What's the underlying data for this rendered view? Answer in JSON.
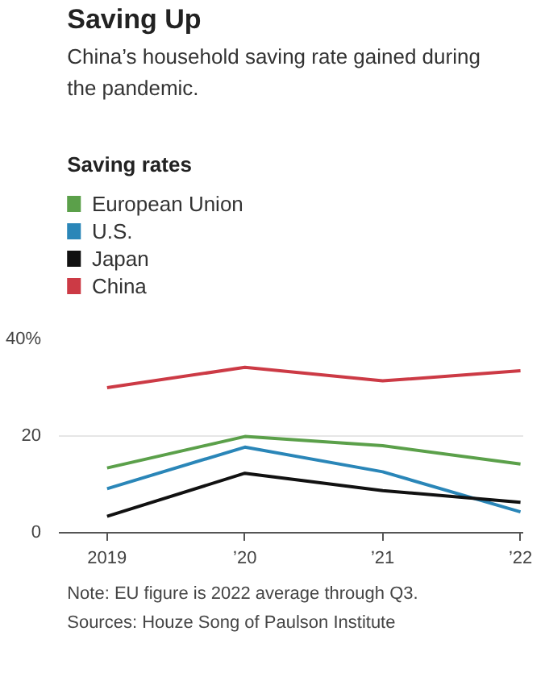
{
  "chart_data": {
    "type": "line",
    "title": "Saving Up",
    "subtitle": "China’s household saving rate gained during the pandemic.",
    "legend_title": "Saving rates",
    "x": [
      2019,
      2020,
      2021,
      2022
    ],
    "series": [
      {
        "name": "European Union",
        "color": "#5ba04a",
        "values": [
          13.4,
          19.9,
          18,
          14.2
        ]
      },
      {
        "name": "U.S.",
        "color": "#2a86b8",
        "values": [
          9.1,
          17.7,
          12.6,
          4.3
        ]
      },
      {
        "name": "Japan",
        "color": "#111111",
        "values": [
          3.4,
          12.3,
          8.7,
          6.3
        ]
      },
      {
        "name": "China",
        "color": "#cc3a45",
        "values": [
          30,
          34.2,
          31.4,
          33.5
        ]
      }
    ],
    "xlim": [
      2018.65,
      2022.02
    ],
    "xticks": [
      {
        "value": 2019,
        "label": "2019"
      },
      {
        "value": 2020,
        "label": "’20"
      },
      {
        "value": 2021,
        "label": "’21"
      },
      {
        "value": 2022,
        "label": "’22"
      }
    ],
    "ylim": [
      0,
      40
    ],
    "yticks": [
      0,
      20,
      {
        "value": 40,
        "label": "40%"
      }
    ],
    "grid": "y",
    "legend": "top left",
    "marker": "none",
    "line_style": "solid",
    "annotations": [
      "Note: EU figure is 2022 average through Q3.",
      "Sources: Houze Song of Paulson Institute"
    ]
  }
}
